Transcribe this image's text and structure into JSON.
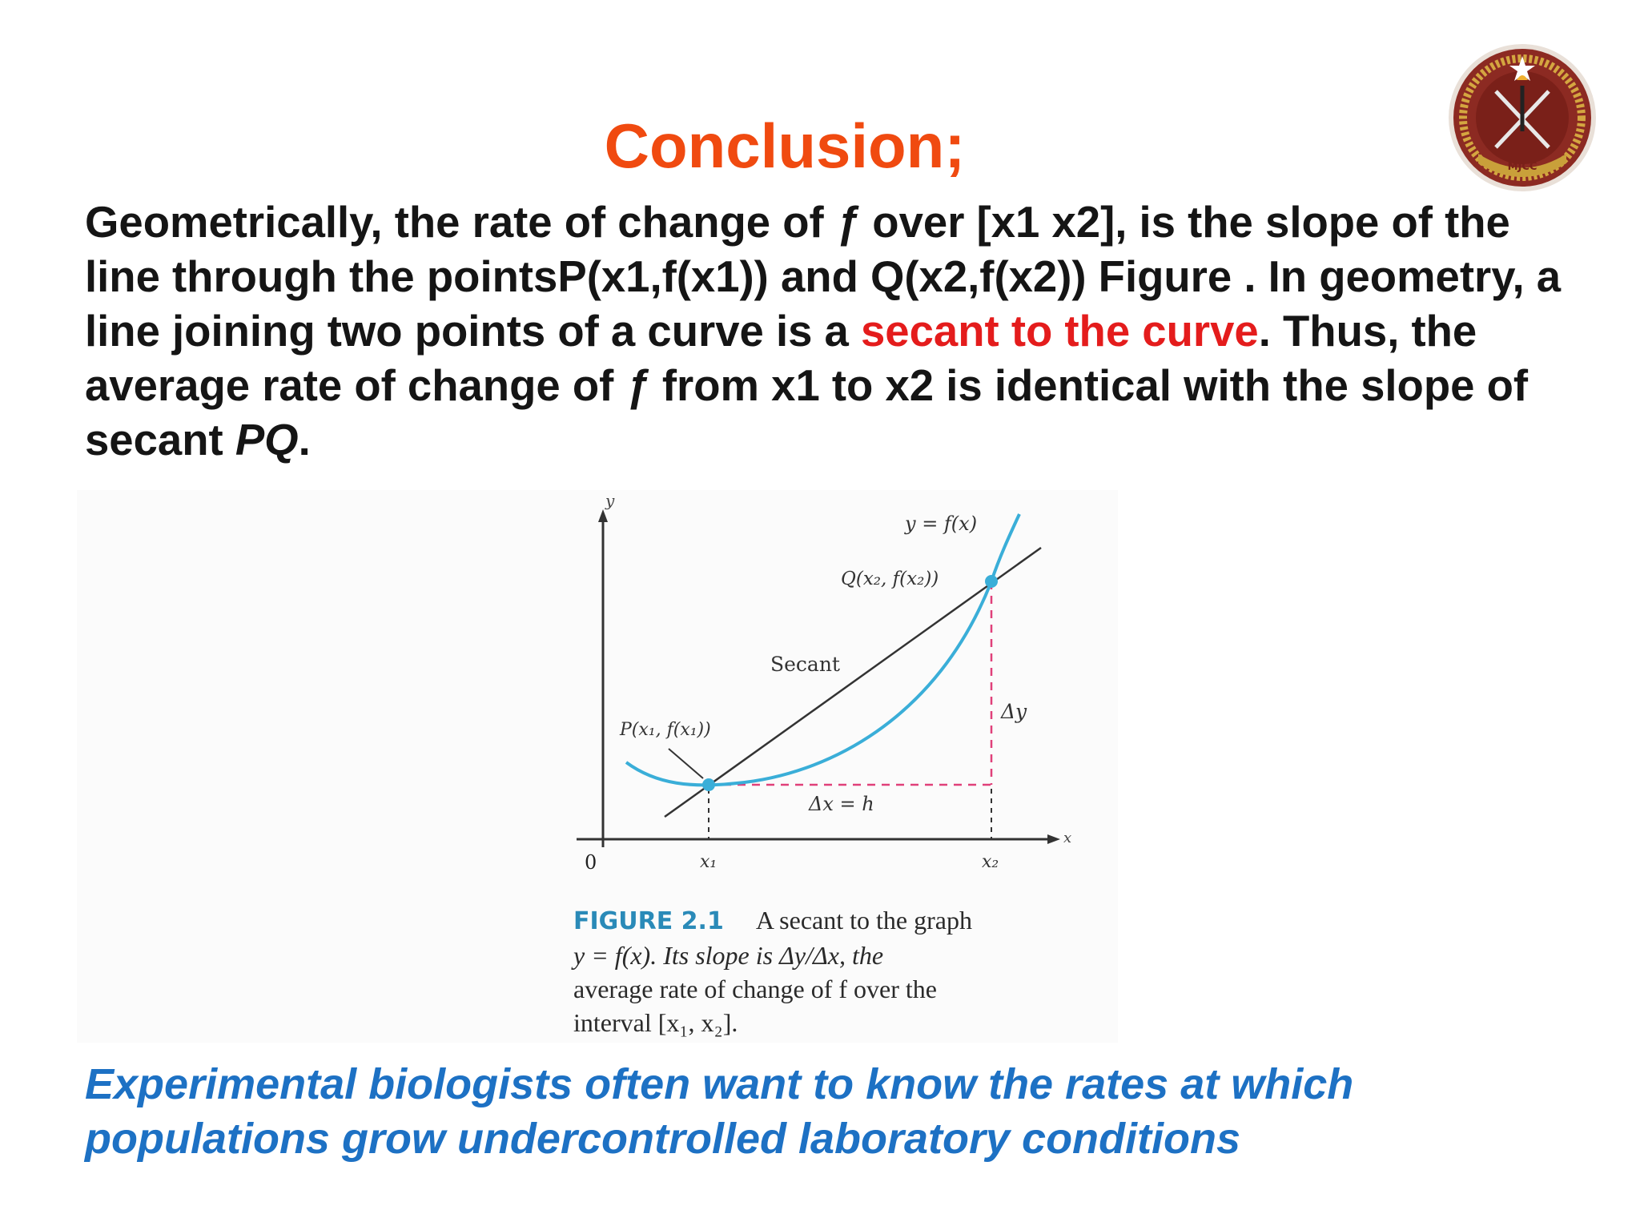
{
  "slide": {
    "title": "Conclusion;",
    "paragraph": {
      "p1": "Geometrically, the rate of change of ",
      "f1": "ƒ",
      "p2": " over [x1  x2],  is the slope of the line through the pointsP(x1,f(x1)) and Q(x2,f(x2)) Figure . In geometry, a line joining two points of a curve is a ",
      "highlight": "secant to the curve",
      "p3": ". Thus, the average rate of change of ",
      "f2": "ƒ",
      "p4": " from x1 to x2 is identical with the slope of secant ",
      "pq": "PQ",
      "p5": "."
    },
    "footer": "Experimental biologists often want to know the rates at which populations grow undercontrolled laboratory conditions",
    "colors": {
      "title": "#f04a10",
      "highlight": "#e41c1c",
      "footer": "#1d71c4",
      "curve": "#3aaed8",
      "dashed": "#e0407a"
    }
  },
  "logo": {
    "text": "MJCC",
    "icon": "crossed-swords-emblem-icon"
  },
  "figure": {
    "axis_y": "y",
    "axis_x": "x",
    "origin": "0",
    "curve_label": "y = f(x)",
    "q_label": "Q(x₂, f(x₂))",
    "p_label": "P(x₁, f(x₁))",
    "secant_label": "Secant",
    "dy_label": "Δy",
    "dx_label": "Δx = h",
    "x1_label": "x₁",
    "x2_label": "x₂",
    "caption": {
      "label": "FIGURE 2.1",
      "line1": "A secant to the graph",
      "line2": "y = f(x). Its slope is Δy/Δx, the",
      "line3": "average rate of change of f over the",
      "line4": "interval [x₁, x₂]."
    }
  }
}
